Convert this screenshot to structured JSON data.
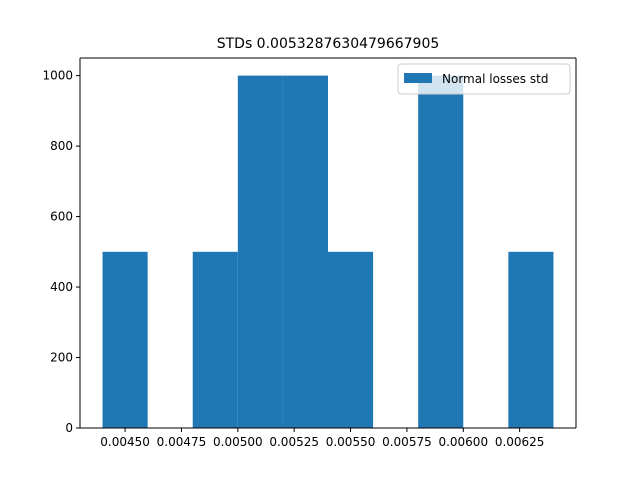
{
  "chart_data": {
    "type": "histogram",
    "title": "STDs 0.0053287630479667905",
    "bins": [
      0.0044,
      0.0046,
      0.0048,
      0.005,
      0.0052,
      0.0054,
      0.0056,
      0.0058,
      0.006,
      0.0062,
      0.0064
    ],
    "series": [
      {
        "name": "Normal losses std",
        "color": "#1f77b4",
        "values": [
          500,
          0,
          500,
          1000,
          1000,
          500,
          0,
          1000,
          0,
          500
        ]
      }
    ],
    "xlim": [
      0.0043,
      0.0065
    ],
    "xticks": [
      {
        "value": 0.0045,
        "label": "0.00450"
      },
      {
        "value": 0.00475,
        "label": "0.00475"
      },
      {
        "value": 0.005,
        "label": "0.00500"
      },
      {
        "value": 0.00525,
        "label": "0.00525"
      },
      {
        "value": 0.0055,
        "label": "0.00550"
      },
      {
        "value": 0.00575,
        "label": "0.00575"
      },
      {
        "value": 0.006,
        "label": "0.00600"
      },
      {
        "value": 0.00625,
        "label": "0.00625"
      }
    ],
    "ylim": [
      0,
      1050
    ],
    "yticks": [
      0,
      200,
      400,
      600,
      800,
      1000
    ],
    "legend": "upper right",
    "grid": false
  }
}
